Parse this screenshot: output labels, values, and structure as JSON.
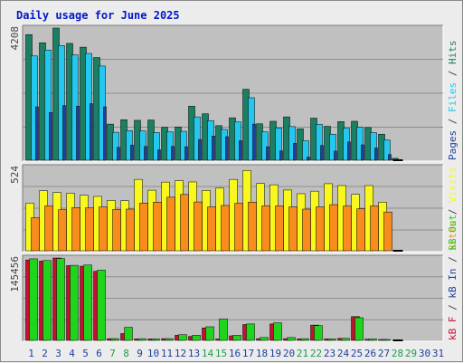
{
  "chart_data": {
    "type": "bar",
    "title": "Daily usage for June 2025",
    "categories": [
      "1",
      "2",
      "3",
      "4",
      "5",
      "6",
      "7",
      "8",
      "9",
      "10",
      "11",
      "12",
      "13",
      "14",
      "15",
      "16",
      "17",
      "18",
      "19",
      "20",
      "21",
      "22",
      "23",
      "24",
      "25",
      "26",
      "27",
      "28",
      "29",
      "30",
      "31"
    ],
    "weekend_days": [
      "7",
      "8",
      "14",
      "15",
      "21",
      "22",
      "28",
      "29"
    ],
    "panels": [
      {
        "id": "hits-files-pages",
        "axis_max": 4208,
        "axis_max_label": "4208",
        "side_label": [
          "Pages",
          "Files",
          "Hits"
        ],
        "series": [
          {
            "name": "Hits",
            "color": "#1b7f63",
            "values": [
              4000,
              3740,
              4208,
              3720,
              3600,
              3270,
              1150,
              1290,
              1270,
              1280,
              1050,
              1060,
              1720,
              1480,
              1100,
              1350,
              2260,
              1160,
              1240,
              1380,
              1000,
              1340,
              1080,
              1230,
              1240,
              1040,
              830,
              60,
              0,
              0,
              0
            ]
          },
          {
            "name": "Files",
            "color": "#22c8ef",
            "values": [
              3320,
              3510,
              3650,
              3350,
              3400,
              3000,
              890,
              940,
              930,
              880,
              900,
              920,
              1380,
              1260,
              980,
              1220,
              1990,
              900,
              1030,
              1070,
              620,
              1140,
              830,
              1020,
              1050,
              880,
              640,
              0,
              0,
              0,
              0
            ]
          },
          {
            "name": "Pages",
            "color": "#1f3fa0",
            "values": [
              1700,
              1520,
              1740,
              1720,
              1800,
              1700,
              410,
              480,
              440,
              330,
              440,
              430,
              660,
              770,
              750,
              620,
              1150,
              430,
              300,
              540,
              100,
              470,
              290,
              580,
              490,
              390,
              180,
              0,
              0,
              0,
              0
            ]
          }
        ]
      },
      {
        "id": "visits-sites",
        "axis_max": 524,
        "axis_max_label": "524",
        "side_label": [
          "Sites",
          "Visits"
        ],
        "series": [
          {
            "name": "Visits",
            "color": "#f8f81c",
            "values": [
              300,
              378,
              366,
              362,
              349,
              342,
              317,
              315,
              449,
              381,
              432,
              441,
              433,
              380,
              394,
              449,
              505,
              423,
              415,
              382,
              359,
              375,
              422,
              410,
              355,
              410,
              306,
              0,
              0,
              0,
              0
            ]
          },
          {
            "name": "Sites",
            "color": "#f88c1c",
            "values": [
              208,
              282,
              258,
              272,
              270,
              276,
              260,
              262,
              300,
              306,
              337,
              354,
              307,
              276,
              285,
              298,
              306,
              283,
              282,
              276,
              262,
              276,
              290,
              281,
              264,
              282,
              244,
              0,
              0,
              0,
              0
            ]
          }
        ]
      },
      {
        "id": "kbytes",
        "axis_max": 145456,
        "axis_max_label": "145456",
        "side_label": [
          "kB F",
          "kB In",
          "kB Out"
        ],
        "series": [
          {
            "name": "kB F",
            "color": "#c8102e",
            "values": [
              142000,
              140000,
              145456,
              132000,
              131000,
              122000,
              3000,
              12000,
              2500,
              2500,
              3000,
              9000,
              7000,
              22000,
              2500,
              8000,
              28000,
              3000,
              29000,
              3000,
              2500,
              27000,
              2500,
              3500,
              42000,
              2000,
              1000,
              0,
              0,
              0,
              0
            ]
          },
          {
            "name": "kB Out",
            "color": "#1ed51c",
            "values": [
              144000,
              141000,
              144500,
              132500,
              133000,
              124000,
              3000,
              23000,
              3000,
              2500,
              3000,
              10000,
              9000,
              24000,
              38000,
              9000,
              29000,
              5000,
              31000,
              5000,
              3000,
              26000,
              2500,
              3500,
              40000,
              2500,
              1500,
              0,
              0,
              0,
              0
            ]
          }
        ]
      }
    ]
  },
  "colors": {
    "title": "#0018c8",
    "axis_top": "#424242",
    "weekday_label": "#1f3fa0",
    "weekend_label": "#19a04b",
    "hits": "#1b7f63",
    "files": "#22c8ef",
    "pages": "#1f3fa0",
    "visits": "#f8f81c",
    "sites": "#f88c1c",
    "kbf": "#c8102e",
    "kbin": "#1f3fa0",
    "kbout": "#1ed51c"
  }
}
